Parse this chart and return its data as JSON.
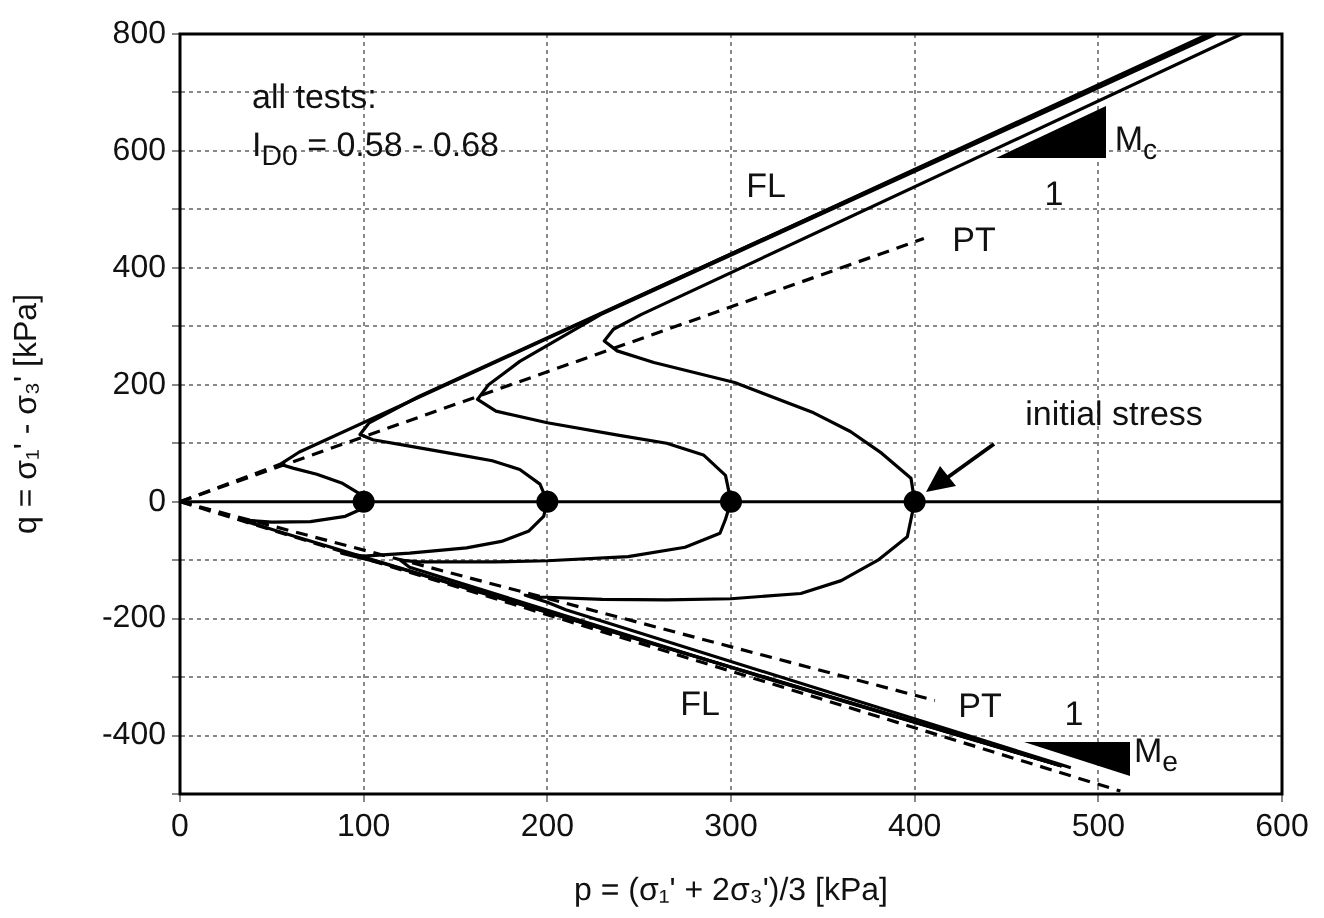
{
  "chart_data": {
    "type": "line",
    "xlabel": "p = (σ₁' + 2σ₃')/3 [kPa]",
    "ylabel": "q = σ₁' - σ₃' [kPa]",
    "xlim": [
      0,
      600
    ],
    "xticks": [
      0,
      100,
      200,
      300,
      400,
      500,
      600
    ],
    "ylim": [
      -500,
      800
    ],
    "yticks": [
      {
        "value": -500,
        "label": null
      },
      -400,
      {
        "value": -300,
        "label": null
      },
      -200,
      {
        "value": -100,
        "label": null
      },
      0,
      {
        "value": 100,
        "label": null
      },
      200,
      {
        "value": 300,
        "label": null
      },
      400,
      {
        "value": 500,
        "label": null
      },
      600,
      {
        "value": 700,
        "label": null
      },
      800
    ],
    "grid": true,
    "legend": false,
    "marker": "none",
    "line_style": "solid",
    "ref_lines": [
      {
        "axis": "y",
        "value": 0,
        "color": "#000000"
      }
    ],
    "series": [
      {
        "color": "#000000",
        "x": [
          100,
          97,
          88,
          74.5,
          62,
          54.5,
          65,
          229,
          560
        ],
        "values": [
          0,
          15,
          32,
          47,
          57,
          64,
          85,
          321,
          800
        ]
      },
      {
        "color": "#000000",
        "x": [
          200,
          196,
          185,
          170,
          156,
          125,
          105,
          98,
          103,
          130,
          229,
          562
        ],
        "values": [
          0,
          30,
          55,
          70,
          78,
          95,
          106,
          115,
          135,
          180,
          322,
          800
        ]
      },
      {
        "color": "#000000",
        "x": [
          300,
          297,
          285,
          265,
          240,
          200,
          172,
          162,
          168,
          185,
          229,
          564
        ],
        "values": [
          0,
          45,
          80,
          100,
          113,
          135,
          155,
          175,
          200,
          240,
          320,
          800
        ]
      },
      {
        "color": "#000000",
        "x": [
          400,
          398,
          382,
          365,
          345,
          302,
          258,
          238,
          231,
          236,
          251,
          578
        ],
        "values": [
          0,
          40,
          83,
          120,
          152,
          204,
          238,
          258,
          275,
          295,
          320,
          800
        ]
      },
      {
        "color": "#000000",
        "x": [
          100,
          97,
          90,
          71,
          50,
          33,
          60,
          480
        ],
        "values": [
          0,
          -15,
          -25,
          -34,
          -35,
          -31,
          -57,
          -452
        ]
      },
      {
        "color": "#000000",
        "x": [
          200,
          198,
          190,
          175,
          156,
          125,
          100,
          88,
          110,
          480
        ],
        "values": [
          0,
          -25,
          -50,
          -68,
          -79,
          -88,
          -93,
          -88,
          -105,
          -452
        ]
      },
      {
        "color": "#000000",
        "x": [
          300,
          297,
          294,
          275,
          244,
          200,
          171,
          130,
          120,
          125,
          316,
          480
        ],
        "values": [
          0,
          -30,
          -54,
          -78,
          -94,
          -101,
          -103,
          -103,
          -100,
          -112,
          -299,
          -452
        ]
      },
      {
        "color": "#000000",
        "x": [
          400,
          398,
          396,
          380,
          360,
          338,
          300,
          265,
          230,
          196,
          188,
          200,
          210,
          485
        ],
        "values": [
          0,
          -30,
          -60,
          -100,
          -135,
          -157,
          -166,
          -168,
          -167,
          -163,
          -160,
          -172,
          -185,
          -455
        ]
      },
      {
        "color": "#000000",
        "line_style": "dashed",
        "x": [
          0,
          405
        ],
        "values": [
          0,
          450
        ]
      },
      {
        "color": "#000000",
        "line_style": "dashed",
        "x": [
          0,
          54.5
        ],
        "values": [
          0,
          64
        ]
      },
      {
        "color": "#000000",
        "line_style": "dashed",
        "x": [
          0,
          411
        ],
        "values": [
          0,
          -340
        ]
      },
      {
        "color": "#000000",
        "line_style": "dashed",
        "x": [
          0,
          512
        ],
        "values": [
          0,
          -495
        ]
      },
      {
        "type": "scatter",
        "color": "#000000",
        "marker": "circle",
        "x": [
          100,
          200,
          300,
          400
        ],
        "values": [
          0,
          0,
          0,
          0
        ]
      }
    ],
    "annotations": [
      "all tests:",
      "I$_{D0}$ = 0.58 - 0.68",
      "FL",
      "PT",
      "1",
      "M$_{c}$",
      "initial stress",
      "FL",
      "PT",
      "1",
      "M$_{e}$"
    ]
  }
}
